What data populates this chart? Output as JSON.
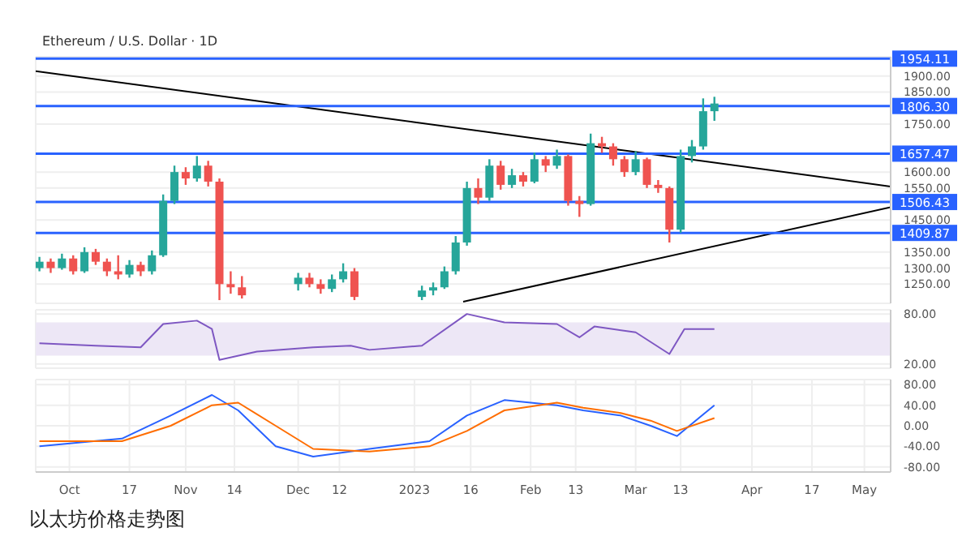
{
  "chart_data": [
    {
      "type": "candlestick",
      "title": "Ethereum / U.S. Dollar · 1D",
      "x": [
        "2022-09-23",
        "2022-09-26",
        "2022-09-29",
        "2022-10-02",
        "2022-10-05",
        "2022-10-08",
        "2022-10-11",
        "2022-10-14",
        "2022-10-17",
        "2022-10-20",
        "2022-10-23",
        "2022-10-26",
        "2022-10-29",
        "2022-11-01",
        "2022-11-04",
        "2022-11-07",
        "2022-11-10",
        "2022-11-13",
        "2022-11-16",
        "2022-12-01",
        "2022-12-04",
        "2022-12-07",
        "2022-12-10",
        "2022-12-13",
        "2022-12-16",
        "2023-01-03",
        "2023-01-06",
        "2023-01-09",
        "2023-01-12",
        "2023-01-15",
        "2023-01-18",
        "2023-01-21",
        "2023-01-24",
        "2023-01-27",
        "2023-01-30",
        "2023-02-02",
        "2023-02-05",
        "2023-02-08",
        "2023-02-11",
        "2023-02-14",
        "2023-02-17",
        "2023-02-20",
        "2023-02-23",
        "2023-02-26",
        "2023-03-01",
        "2023-03-04",
        "2023-03-07",
        "2023-03-10",
        "2023-03-13",
        "2023-03-16",
        "2023-03-19",
        "2023-03-22"
      ],
      "ohlc": [
        [
          1300,
          1335,
          1290,
          1320
        ],
        [
          1320,
          1330,
          1285,
          1300
        ],
        [
          1300,
          1345,
          1295,
          1330
        ],
        [
          1330,
          1340,
          1280,
          1290
        ],
        [
          1290,
          1365,
          1285,
          1350
        ],
        [
          1350,
          1360,
          1310,
          1320
        ],
        [
          1320,
          1330,
          1275,
          1290
        ],
        [
          1290,
          1340,
          1265,
          1280
        ],
        [
          1280,
          1325,
          1270,
          1310
        ],
        [
          1310,
          1320,
          1275,
          1290
        ],
        [
          1290,
          1355,
          1280,
          1340
        ],
        [
          1340,
          1530,
          1335,
          1510
        ],
        [
          1510,
          1620,
          1500,
          1600
        ],
        [
          1600,
          1615,
          1560,
          1580
        ],
        [
          1580,
          1650,
          1570,
          1620
        ],
        [
          1620,
          1635,
          1555,
          1570
        ],
        [
          1570,
          1580,
          1200,
          1250
        ],
        [
          1250,
          1290,
          1220,
          1240
        ],
        [
          1240,
          1275,
          1205,
          1215
        ],
        [
          1250,
          1285,
          1230,
          1270
        ],
        [
          1270,
          1285,
          1240,
          1250
        ],
        [
          1250,
          1265,
          1220,
          1235
        ],
        [
          1235,
          1280,
          1225,
          1265
        ],
        [
          1265,
          1315,
          1255,
          1290
        ],
        [
          1290,
          1300,
          1200,
          1210
        ],
        [
          1210,
          1245,
          1200,
          1230
        ],
        [
          1230,
          1255,
          1215,
          1240
        ],
        [
          1240,
          1305,
          1235,
          1290
        ],
        [
          1290,
          1400,
          1280,
          1380
        ],
        [
          1380,
          1570,
          1370,
          1550
        ],
        [
          1550,
          1580,
          1500,
          1520
        ],
        [
          1520,
          1640,
          1510,
          1620
        ],
        [
          1620,
          1635,
          1545,
          1560
        ],
        [
          1560,
          1610,
          1550,
          1590
        ],
        [
          1590,
          1600,
          1555,
          1570
        ],
        [
          1570,
          1660,
          1565,
          1640
        ],
        [
          1640,
          1650,
          1600,
          1620
        ],
        [
          1620,
          1670,
          1610,
          1650
        ],
        [
          1650,
          1655,
          1495,
          1510
        ],
        [
          1510,
          1525,
          1460,
          1500
        ],
        [
          1500,
          1720,
          1495,
          1690
        ],
        [
          1690,
          1710,
          1660,
          1680
        ],
        [
          1680,
          1690,
          1620,
          1640
        ],
        [
          1640,
          1650,
          1585,
          1600
        ],
        [
          1600,
          1665,
          1590,
          1640
        ],
        [
          1640,
          1645,
          1550,
          1560
        ],
        [
          1560,
          1575,
          1535,
          1550
        ],
        [
          1550,
          1555,
          1380,
          1420
        ],
        [
          1420,
          1670,
          1410,
          1650
        ],
        [
          1650,
          1700,
          1630,
          1680
        ],
        [
          1680,
          1830,
          1670,
          1790
        ],
        [
          1790,
          1835,
          1760,
          1814
        ]
      ],
      "colors": [
        "#26a69a",
        "#ef5350",
        "#26a69a",
        "#ef5350",
        "#26a69a",
        "#ef5350",
        "#ef5350",
        "#ef5350",
        "#26a69a",
        "#ef5350",
        "#26a69a",
        "#26a69a",
        "#26a69a",
        "#ef5350",
        "#26a69a",
        "#ef5350",
        "#ef5350",
        "#ef5350",
        "#ef5350",
        "#26a69a",
        "#ef5350",
        "#ef5350",
        "#26a69a",
        "#26a69a",
        "#ef5350",
        "#26a69a",
        "#26a69a",
        "#26a69a",
        "#26a69a",
        "#26a69a",
        "#ef5350",
        "#26a69a",
        "#ef5350",
        "#26a69a",
        "#ef5350",
        "#26a69a",
        "#ef5350",
        "#26a69a",
        "#ef5350",
        "#ef5350",
        "#26a69a",
        "#ef5350",
        "#ef5350",
        "#ef5350",
        "#26a69a",
        "#ef5350",
        "#ef5350",
        "#ef5350",
        "#26a69a",
        "#26a69a",
        "#26a69a",
        "#26a69a"
      ],
      "series": [
        {
          "type": "line",
          "color": "#000000",
          "x": [
            "2022-09-22",
            "2023-05-08"
          ],
          "values": [
            1915,
            1555
          ]
        },
        {
          "type": "line",
          "color": "#000000",
          "x": [
            "2023-01-14",
            "2023-05-08"
          ],
          "values": [
            1195,
            1490
          ]
        }
      ],
      "ref_lines": [
        {
          "axis": "y",
          "value": 1954.11,
          "label": "1954.11",
          "color": "#2962ff"
        },
        {
          "axis": "y",
          "value": 1806.3,
          "label": "1806.30",
          "color": "#2962ff"
        },
        {
          "axis": "y",
          "value": 1657.47,
          "label": "1657.47",
          "color": "#2962ff"
        },
        {
          "axis": "y",
          "value": 1506.43,
          "label": "1506.43",
          "color": "#2962ff"
        },
        {
          "axis": "y",
          "value": 1409.87,
          "label": "1409.87",
          "color": "#2962ff"
        }
      ],
      "xlim": [
        "2022-09-22",
        "2023-05-08"
      ],
      "ylim": [
        1190,
        1960
      ],
      "yticks": [
        {
          "value": 1250,
          "label": "1250.00"
        },
        {
          "value": 1300,
          "label": "1300.00"
        },
        {
          "value": 1350,
          "label": "1350.00"
        },
        {
          "value": 1450,
          "label": "1450.00"
        },
        {
          "value": 1550,
          "label": "1550.00"
        },
        {
          "value": 1600,
          "label": "1600.00"
        },
        {
          "value": 1750,
          "label": "1750.00"
        },
        {
          "value": 1850,
          "label": "1850.00"
        },
        {
          "value": 1900,
          "label": "1900.00"
        }
      ],
      "xticks": [
        {
          "value": "2022-10-01",
          "label": null
        },
        {
          "value": "2022-10-17",
          "label": null
        },
        {
          "value": "2022-11-01",
          "label": null
        },
        {
          "value": "2022-11-14",
          "label": null
        },
        {
          "value": "2022-12-01",
          "label": null
        },
        {
          "value": "2022-12-12",
          "label": null
        },
        {
          "value": "2023-01-01",
          "label": null
        },
        {
          "value": "2023-01-16",
          "label": null
        },
        {
          "value": "2023-02-01",
          "label": null
        },
        {
          "value": "2023-02-13",
          "label": null
        },
        {
          "value": "2023-03-01",
          "label": null
        },
        {
          "value": "2023-03-13",
          "label": null
        },
        {
          "value": "2023-04-01",
          "label": null
        },
        {
          "value": "2023-04-17",
          "label": null
        },
        {
          "value": "2023-05-01",
          "label": null
        }
      ],
      "tick_labels": "y",
      "grid": true
    },
    {
      "type": "line",
      "x": [
        "2022-09-23",
        "2022-10-08",
        "2022-10-20",
        "2022-10-26",
        "2022-11-04",
        "2022-11-08",
        "2022-11-10",
        "2022-11-20",
        "2022-12-05",
        "2022-12-15",
        "2022-12-20",
        "2023-01-03",
        "2023-01-15",
        "2023-01-25",
        "2023-02-08",
        "2023-02-14",
        "2023-02-18",
        "2023-03-01",
        "2023-03-10",
        "2023-03-14",
        "2023-03-22"
      ],
      "series": [
        {
          "color": "#7e57c2",
          "values": [
            45,
            42,
            40,
            68,
            72,
            62,
            25,
            35,
            40,
            42,
            37,
            42,
            80,
            70,
            68,
            52,
            65,
            58,
            32,
            62,
            62
          ]
        }
      ],
      "bands": [
        {
          "axis": "y",
          "from": 30,
          "to": 70,
          "color": "#ede7f6"
        }
      ],
      "xlim": [
        "2022-09-22",
        "2023-05-08"
      ],
      "ylim": [
        15,
        85
      ],
      "yticks": [
        {
          "value": 20,
          "label": "20.00"
        },
        {
          "value": 80,
          "label": "80.00"
        }
      ],
      "xticks": [
        {
          "value": "2022-10-01",
          "label": null
        },
        {
          "value": "2022-10-17",
          "label": null
        },
        {
          "value": "2022-11-01",
          "label": null
        },
        {
          "value": "2022-11-14",
          "label": null
        },
        {
          "value": "2022-12-01",
          "label": null
        },
        {
          "value": "2022-12-12",
          "label": null
        },
        {
          "value": "2023-01-01",
          "label": null
        },
        {
          "value": "2023-01-16",
          "label": null
        },
        {
          "value": "2023-02-01",
          "label": null
        },
        {
          "value": "2023-02-13",
          "label": null
        },
        {
          "value": "2023-03-01",
          "label": null
        },
        {
          "value": "2023-03-13",
          "label": null
        },
        {
          "value": "2023-04-01",
          "label": null
        },
        {
          "value": "2023-04-17",
          "label": null
        },
        {
          "value": "2023-05-01",
          "label": null
        }
      ],
      "tick_labels": "y",
      "grid": true
    },
    {
      "type": "line",
      "x": [
        "2022-09-23",
        "2022-10-15",
        "2022-10-28",
        "2022-11-08",
        "2022-11-15",
        "2022-11-25",
        "2022-12-05",
        "2022-12-20",
        "2023-01-05",
        "2023-01-15",
        "2023-01-25",
        "2023-02-08",
        "2023-02-15",
        "2023-02-25",
        "2023-03-05",
        "2023-03-12",
        "2023-03-22"
      ],
      "series": [
        {
          "color": "#2962ff",
          "values": [
            -40,
            -25,
            20,
            60,
            30,
            -40,
            -60,
            -45,
            -30,
            20,
            50,
            40,
            30,
            20,
            0,
            -20,
            40
          ]
        },
        {
          "color": "#ff6d00",
          "values": [
            -30,
            -30,
            0,
            40,
            45,
            0,
            -45,
            -50,
            -40,
            -10,
            30,
            45,
            35,
            25,
            10,
            -10,
            15
          ]
        }
      ],
      "xlim": [
        "2022-09-22",
        "2023-05-08"
      ],
      "ylim": [
        -90,
        90
      ],
      "yticks": [
        {
          "value": -80,
          "label": "-80.00"
        },
        {
          "value": -40,
          "label": "-40.00"
        },
        {
          "value": 0,
          "label": "0.00"
        },
        {
          "value": 40,
          "label": "40.00"
        },
        {
          "value": 80,
          "label": "80.00"
        }
      ],
      "xticks": [
        {
          "value": "2022-10-01",
          "label": "Oct"
        },
        {
          "value": "2022-10-17",
          "label": "17"
        },
        {
          "value": "2022-11-01",
          "label": "Nov"
        },
        {
          "value": "2022-11-14",
          "label": "14"
        },
        {
          "value": "2022-12-01",
          "label": "Dec"
        },
        {
          "value": "2022-12-12",
          "label": "12"
        },
        {
          "value": "2023-01-01",
          "label": "2023"
        },
        {
          "value": "2023-01-16",
          "label": "16"
        },
        {
          "value": "2023-02-01",
          "label": "Feb"
        },
        {
          "value": "2023-02-13",
          "label": "13"
        },
        {
          "value": "2023-03-01",
          "label": "Mar"
        },
        {
          "value": "2023-03-13",
          "label": "13"
        },
        {
          "value": "2023-04-01",
          "label": "Apr"
        },
        {
          "value": "2023-04-17",
          "label": "17"
        },
        {
          "value": "2023-05-01",
          "label": "May"
        }
      ],
      "grid": true,
      "annotations": [
        "以太坊价格走势图"
      ]
    }
  ]
}
